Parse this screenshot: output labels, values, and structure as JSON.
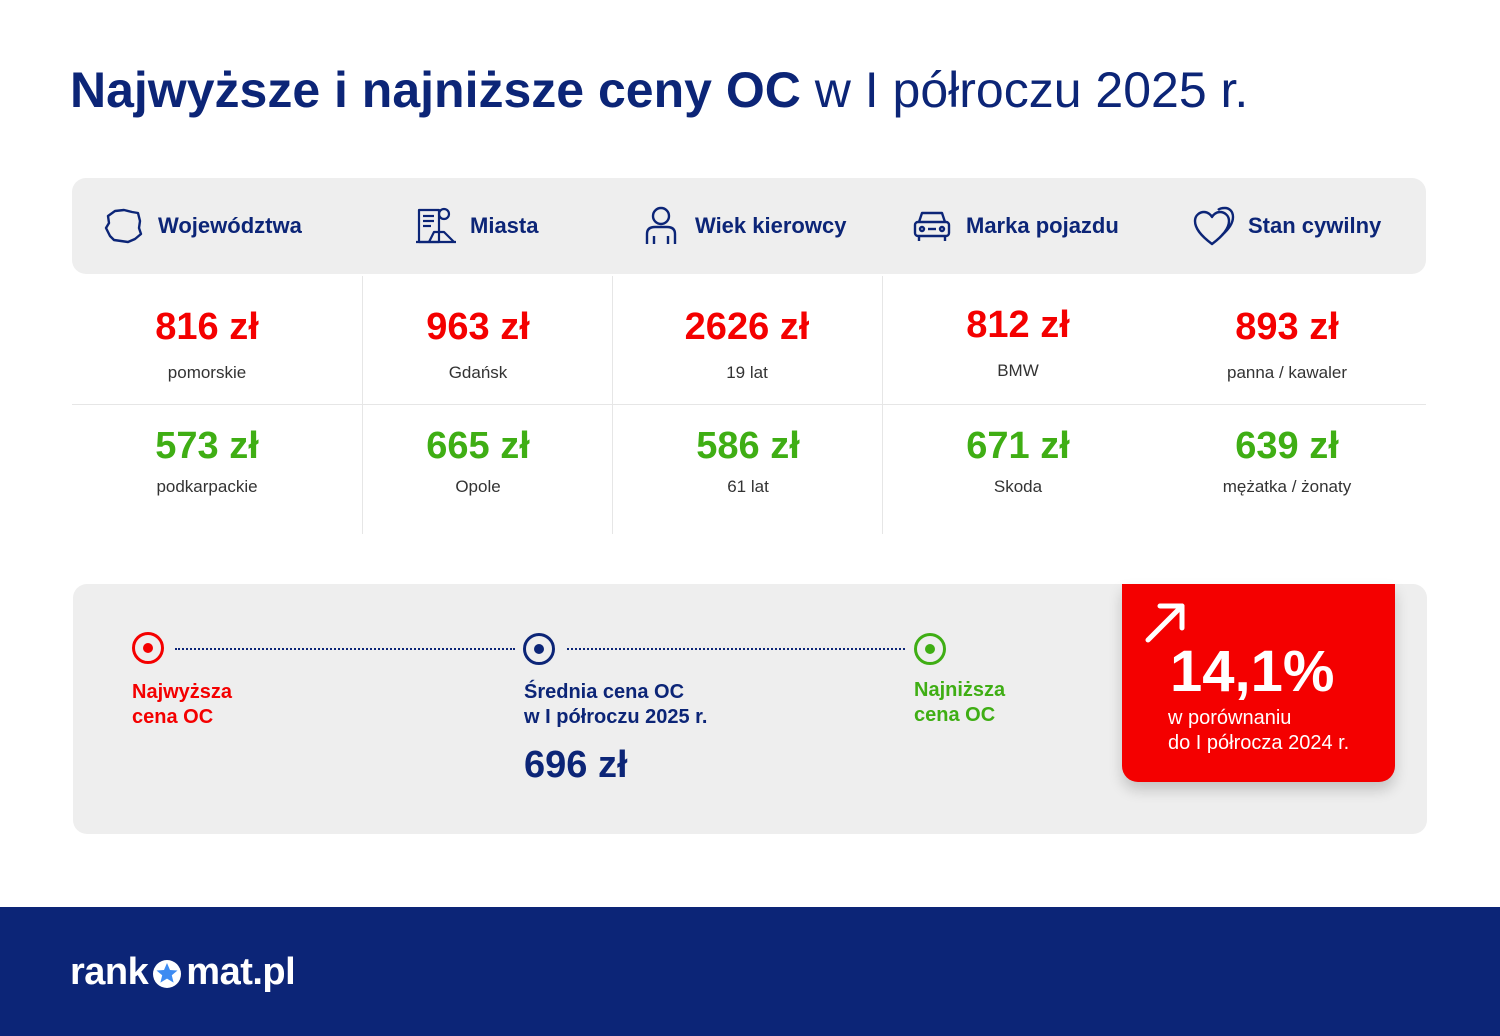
{
  "title": {
    "bold": "Najwyższe i najniższe ceny OC",
    "light": "w I półroczu 2025 r."
  },
  "categories": [
    {
      "label": "Województwa",
      "icon": "poland-map-icon"
    },
    {
      "label": "Miasta",
      "icon": "city-icon"
    },
    {
      "label": "Wiek kierowcy",
      "icon": "person-icon"
    },
    {
      "label": "Marka pojazdu",
      "icon": "car-icon"
    },
    {
      "label": "Stan cywilny",
      "icon": "hearts-icon"
    }
  ],
  "highest": [
    {
      "price": "816 zł",
      "label": "pomorskie"
    },
    {
      "price": "963 zł",
      "label": "Gdańsk"
    },
    {
      "price": "2626 zł",
      "label": "19 lat"
    },
    {
      "price": "812 zł",
      "label": "BMW"
    },
    {
      "price": "893 zł",
      "label": "panna / kawaler"
    }
  ],
  "lowest": [
    {
      "price": "573 zł",
      "label": "podkarpackie"
    },
    {
      "price": "665 zł",
      "label": "Opole"
    },
    {
      "price": "586 zł",
      "label": "61 lat"
    },
    {
      "price": "671 zł",
      "label": "Skoda"
    },
    {
      "price": "639 zł",
      "label": "mężatka / żonaty"
    }
  ],
  "legend": {
    "highest_line1": "Najwyższa",
    "highest_line2": "cena OC",
    "average_line1": "Średnia cena OC",
    "average_line2": "w I półroczu 2025 r.",
    "average_value": "696 zł",
    "lowest_line1": "Najniższa",
    "lowest_line2": "cena OC"
  },
  "change": {
    "value": "14,1%",
    "line1": "w porównaniu",
    "line2": "do I półrocza 2024 r.",
    "icon": "arrow-up-right-icon"
  },
  "footer": {
    "logo_left": "rank",
    "logo_right": "mat.pl",
    "logo_icon": "star-icon"
  },
  "colors": {
    "navy": "#0c2577",
    "red": "#f40000",
    "green": "#3fae14",
    "panel": "#eeeeee"
  }
}
